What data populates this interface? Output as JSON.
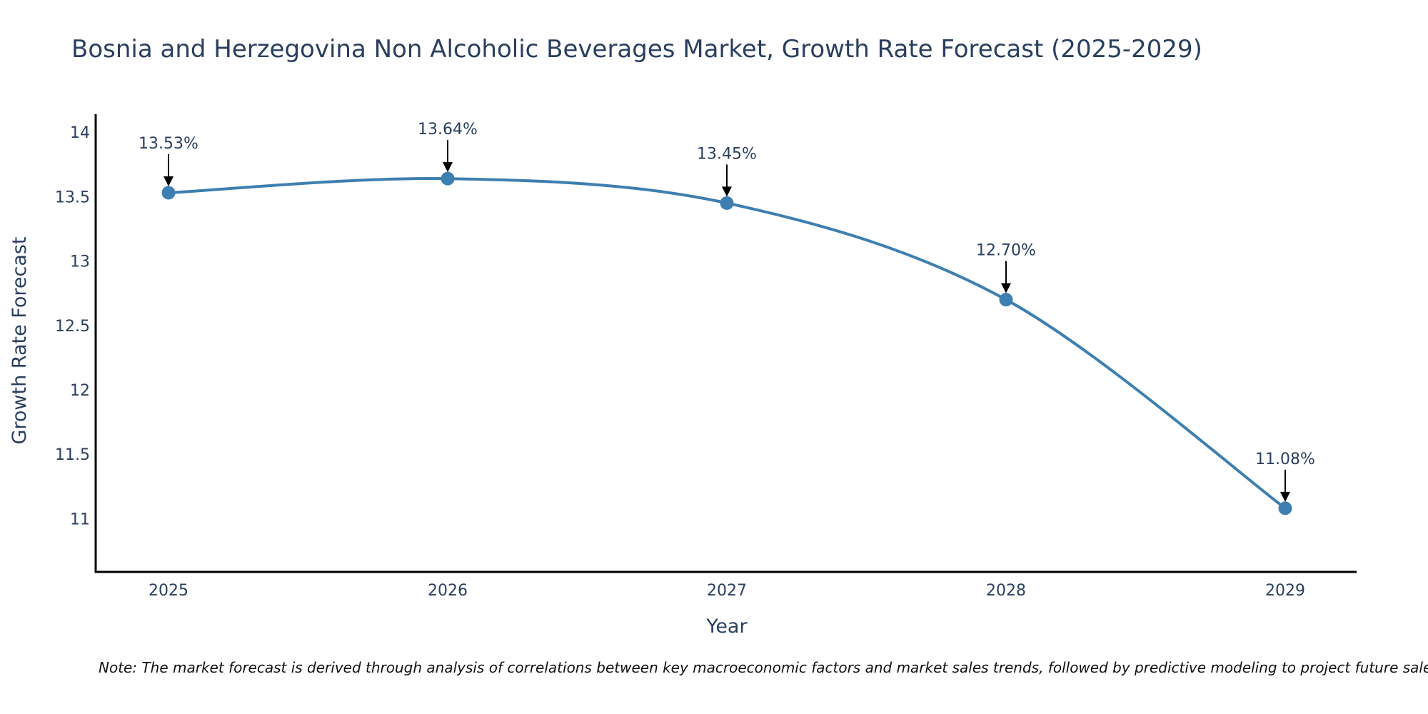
{
  "chart_data": {
    "type": "line",
    "title": "Bosnia and Herzegovina Non Alcoholic Beverages Market, Growth Rate Forecast (2025-2029)",
    "xlabel": "Year",
    "ylabel": "Growth Rate Forecast",
    "categories": [
      "2025",
      "2026",
      "2027",
      "2028",
      "2029"
    ],
    "series": [
      {
        "name": "Growth Rate Forecast",
        "values": [
          13.53,
          13.64,
          13.45,
          12.7,
          11.08
        ],
        "data_labels": [
          "13.53%",
          "13.64%",
          "13.45%",
          "12.70%",
          "11.08%"
        ],
        "color": "#3d7fb0"
      }
    ],
    "ylim": [
      10.58,
      14.14
    ],
    "yticks": [
      11,
      11.5,
      12,
      12.5,
      13,
      13.5,
      14
    ],
    "ytick_labels": [
      "11",
      "11.5",
      "12",
      "12.5",
      "13",
      "13.5",
      "14"
    ],
    "grid": false,
    "note": "Note: The market forecast is derived through analysis of correlations between key macroeconomic factors and market sales trends, followed by predictive modeling to project future sales."
  }
}
